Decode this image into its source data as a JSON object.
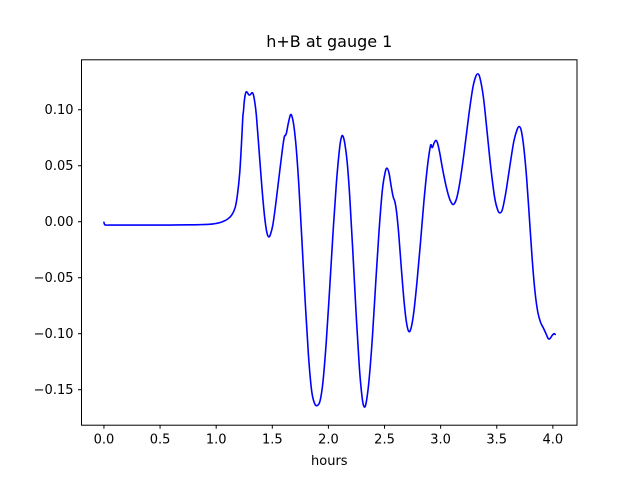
{
  "chart_data": {
    "type": "line",
    "title": "h+B at gauge 1",
    "xlabel": "hours",
    "ylabel": "",
    "grid": false,
    "legend": null,
    "colors": {
      "background": "#ffffff",
      "text": "#000000",
      "frame": "#000000"
    },
    "xlim": [
      -0.2,
      4.215
    ],
    "ylim": [
      -0.1817,
      0.1446
    ],
    "xticks": {
      "values": [
        0.0,
        0.5,
        1.0,
        1.5,
        2.0,
        2.5,
        3.0,
        3.5,
        4.0
      ],
      "labels": [
        "0.0",
        "0.5",
        "1.0",
        "1.5",
        "2.0",
        "2.5",
        "3.0",
        "3.5",
        "4.0"
      ]
    },
    "yticks": {
      "values": [
        0.1,
        0.05,
        0.0,
        -0.05,
        -0.1,
        -0.15
      ],
      "labels": [
        "0.10",
        "0.05",
        "0.00",
        "−0.05",
        "−0.10",
        "−0.15"
      ]
    },
    "series": [
      {
        "name": "h+B",
        "color": "#0000ff",
        "points": [
          [
            0.0,
            -0.0005
          ],
          [
            0.01,
            -0.0028
          ],
          [
            0.05,
            -0.003
          ],
          [
            0.15,
            -0.003
          ],
          [
            0.25,
            -0.003
          ],
          [
            0.35,
            -0.003
          ],
          [
            0.45,
            -0.003
          ],
          [
            0.55,
            -0.003
          ],
          [
            0.65,
            -0.0029
          ],
          [
            0.75,
            -0.0028
          ],
          [
            0.85,
            -0.0026
          ],
          [
            0.95,
            -0.0022
          ],
          [
            1.0,
            -0.0015
          ],
          [
            1.05,
            -0.0002
          ],
          [
            1.1,
            0.0022
          ],
          [
            1.14,
            0.0062
          ],
          [
            1.17,
            0.013
          ],
          [
            1.19,
            0.0245
          ],
          [
            1.21,
            0.044
          ],
          [
            1.225,
            0.069
          ],
          [
            1.237,
            0.093
          ],
          [
            1.243,
            0.0985
          ],
          [
            1.249,
            0.106
          ],
          [
            1.258,
            0.113
          ],
          [
            1.268,
            0.116
          ],
          [
            1.28,
            0.115
          ],
          [
            1.291,
            0.1133
          ],
          [
            1.305,
            0.1135
          ],
          [
            1.318,
            0.1152
          ],
          [
            1.33,
            0.114
          ],
          [
            1.342,
            0.108
          ],
          [
            1.358,
            0.095
          ],
          [
            1.382,
            0.064
          ],
          [
            1.408,
            0.03
          ],
          [
            1.432,
            0.004
          ],
          [
            1.452,
            -0.0098
          ],
          [
            1.468,
            -0.0135
          ],
          [
            1.484,
            -0.0112
          ],
          [
            1.505,
            -0.0028
          ],
          [
            1.53,
            0.0152
          ],
          [
            1.56,
            0.04
          ],
          [
            1.59,
            0.0645
          ],
          [
            1.607,
            0.0757
          ],
          [
            1.616,
            0.077
          ],
          [
            1.626,
            0.0792
          ],
          [
            1.643,
            0.088
          ],
          [
            1.661,
            0.0952
          ],
          [
            1.675,
            0.0942
          ],
          [
            1.693,
            0.085
          ],
          [
            1.713,
            0.066
          ],
          [
            1.737,
            0.032
          ],
          [
            1.762,
            -0.013
          ],
          [
            1.792,
            -0.069
          ],
          [
            1.822,
            -0.119
          ],
          [
            1.85,
            -0.1505
          ],
          [
            1.875,
            -0.1618
          ],
          [
            1.9,
            -0.1642
          ],
          [
            1.926,
            -0.1598
          ],
          [
            1.952,
            -0.1425
          ],
          [
            1.981,
            -0.107
          ],
          [
            2.011,
            -0.06
          ],
          [
            2.041,
            -0.01
          ],
          [
            2.071,
            0.0345
          ],
          [
            2.1,
            0.066
          ],
          [
            2.117,
            0.0758
          ],
          [
            2.13,
            0.0763
          ],
          [
            2.146,
            0.07
          ],
          [
            2.167,
            0.0535
          ],
          [
            2.19,
            0.0225
          ],
          [
            2.216,
            -0.0235
          ],
          [
            2.246,
            -0.0805
          ],
          [
            2.276,
            -0.1305
          ],
          [
            2.301,
            -0.1575
          ],
          [
            2.318,
            -0.1652
          ],
          [
            2.336,
            -0.1618
          ],
          [
            2.361,
            -0.1425
          ],
          [
            2.391,
            -0.1045
          ],
          [
            2.421,
            -0.0555
          ],
          [
            2.451,
            -0.0085
          ],
          [
            2.481,
            0.0285
          ],
          [
            2.506,
            0.0442
          ],
          [
            2.523,
            0.0478
          ],
          [
            2.541,
            0.043
          ],
          [
            2.559,
            0.0318
          ],
          [
            2.577,
            0.0222
          ],
          [
            2.592,
            0.018
          ],
          [
            2.607,
            0.009
          ],
          [
            2.627,
            -0.0115
          ],
          [
            2.651,
            -0.0432
          ],
          [
            2.676,
            -0.0732
          ],
          [
            2.696,
            -0.0902
          ],
          [
            2.716,
            -0.098
          ],
          [
            2.737,
            -0.0948
          ],
          [
            2.762,
            -0.0798
          ],
          [
            2.791,
            -0.0518
          ],
          [
            2.821,
            -0.0178
          ],
          [
            2.851,
            0.0182
          ],
          [
            2.881,
            0.0482
          ],
          [
            2.901,
            0.0632
          ],
          [
            2.913,
            0.0688
          ],
          [
            2.926,
            0.0662
          ],
          [
            2.943,
            0.0706
          ],
          [
            2.959,
            0.0726
          ],
          [
            2.973,
            0.07
          ],
          [
            2.991,
            0.062
          ],
          [
            3.016,
            0.0478
          ],
          [
            3.046,
            0.033
          ],
          [
            3.076,
            0.0215
          ],
          [
            3.101,
            0.0162
          ],
          [
            3.121,
            0.016
          ],
          [
            3.146,
            0.0222
          ],
          [
            3.176,
            0.0382
          ],
          [
            3.211,
            0.0632
          ],
          [
            3.251,
            0.0952
          ],
          [
            3.286,
            0.1192
          ],
          [
            3.311,
            0.1292
          ],
          [
            3.331,
            0.132
          ],
          [
            3.351,
            0.1282
          ],
          [
            3.381,
            0.1112
          ],
          [
            3.411,
            0.0832
          ],
          [
            3.446,
            0.0492
          ],
          [
            3.481,
            0.0218
          ],
          [
            3.511,
            0.0098
          ],
          [
            3.531,
            0.008
          ],
          [
            3.551,
            0.0112
          ],
          [
            3.581,
            0.0262
          ],
          [
            3.616,
            0.0492
          ],
          [
            3.651,
            0.0712
          ],
          [
            3.681,
            0.0822
          ],
          [
            3.701,
            0.085
          ],
          [
            3.719,
            0.0812
          ],
          [
            3.741,
            0.0662
          ],
          [
            3.766,
            0.0392
          ],
          [
            3.791,
            0.0032
          ],
          [
            3.816,
            -0.0338
          ],
          [
            3.841,
            -0.0628
          ],
          [
            3.866,
            -0.0808
          ],
          [
            3.891,
            -0.09
          ],
          [
            3.916,
            -0.095
          ],
          [
            3.941,
            -0.1005
          ],
          [
            3.956,
            -0.104
          ],
          [
            3.969,
            -0.1048
          ],
          [
            3.981,
            -0.1035
          ],
          [
            3.996,
            -0.1012
          ],
          [
            4.011,
            -0.1
          ],
          [
            4.021,
            -0.1006
          ]
        ]
      }
    ]
  }
}
